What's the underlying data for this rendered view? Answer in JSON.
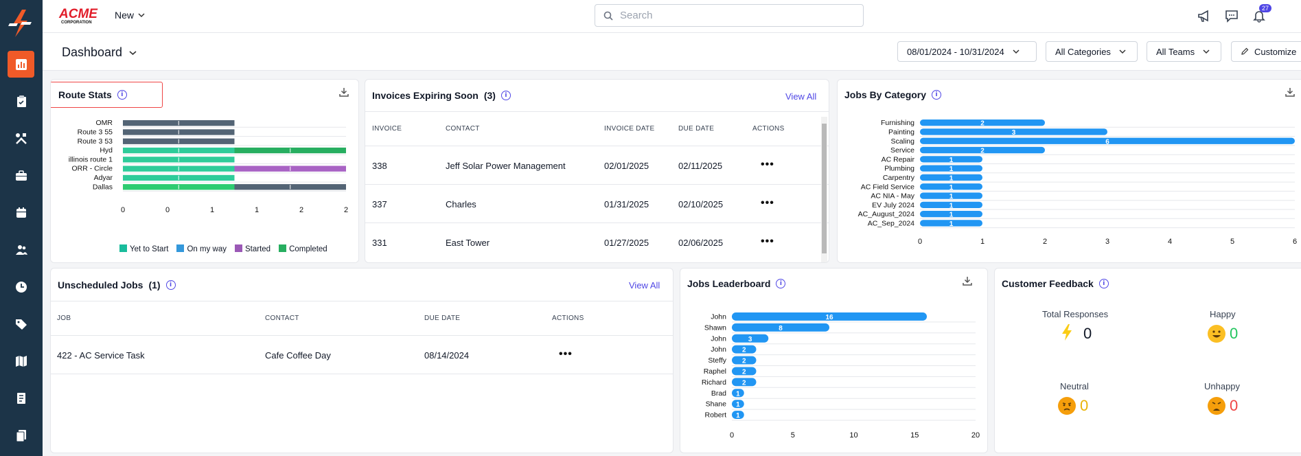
{
  "brand": {
    "line1": "ACME",
    "line2": "CORPORATION"
  },
  "topbar": {
    "new_label": "New",
    "search_placeholder": "Search",
    "notifications_count": "27"
  },
  "dashboard": {
    "title": "Dashboard",
    "date_range": "08/01/2024 - 10/31/2024",
    "categories_filter": "All Categories",
    "teams_filter": "All Teams",
    "customize_label": "Customize"
  },
  "route_stats": {
    "title": "Route Stats",
    "legend": [
      {
        "label": "Yet to Start",
        "color": "#1abc9c"
      },
      {
        "label": "On my way",
        "color": "#3498db"
      },
      {
        "label": "Started",
        "color": "#9b59b6"
      },
      {
        "label": "Completed",
        "color": "#27ae60"
      }
    ],
    "chart_data": {
      "type": "bar",
      "orientation": "horizontal",
      "stacked": true,
      "categories": [
        "OMR",
        "Route 3 55",
        "Route 3 53",
        "Hyd",
        "illinois route 1",
        "ORR - Circle",
        "Adyar",
        "Dallas"
      ],
      "x_ticks": [
        "0",
        "0",
        "1",
        "1",
        "2",
        "2"
      ],
      "xlim": [
        0,
        2
      ],
      "segments": [
        [
          {
            "value": 1,
            "color": "#536475"
          }
        ],
        [
          {
            "value": 1,
            "color": "#536475"
          }
        ],
        [
          {
            "value": 1,
            "color": "#536475"
          }
        ],
        [
          {
            "value": 1,
            "color": "#2ecc9a"
          },
          {
            "value": 1,
            "color": "#27ae60"
          }
        ],
        [
          {
            "value": 1,
            "color": "#2ecc9a"
          }
        ],
        [
          {
            "value": 1,
            "color": "#2ecc9a"
          },
          {
            "value": 1,
            "color": "#a863c4"
          }
        ],
        [
          {
            "value": 1,
            "color": "#2ecc9a"
          }
        ],
        [
          {
            "value": 1,
            "color": "#2ecc71"
          },
          {
            "value": 1,
            "color": "#536475"
          }
        ]
      ]
    }
  },
  "invoices": {
    "title": "Invoices Expiring Soon",
    "count": "(3)",
    "view_all": "View All",
    "columns": [
      "INVOICE",
      "CONTACT",
      "INVOICE DATE",
      "DUE DATE",
      "ACTIONS"
    ],
    "rows": [
      {
        "invoice": "338",
        "contact": "Jeff Solar Power Management",
        "invoice_date": "02/01/2025",
        "due_date": "02/11/2025"
      },
      {
        "invoice": "337",
        "contact": "Charles",
        "invoice_date": "01/31/2025",
        "due_date": "02/10/2025"
      },
      {
        "invoice": "331",
        "contact": "East Tower",
        "invoice_date": "01/27/2025",
        "due_date": "02/06/2025"
      }
    ],
    "actions_glyph": "•••"
  },
  "jobs_by_category": {
    "title": "Jobs By Category",
    "chart_data": {
      "type": "bar",
      "orientation": "horizontal",
      "categories": [
        "Furnishing",
        "Painting",
        "Scaling",
        "Service",
        "AC Repair",
        "Plumbing",
        "Carpentry",
        "AC Field Service",
        "AC NIA - May",
        "EV July 2024",
        "AC_August_2024",
        "AC_Sep_2024"
      ],
      "values": [
        2,
        3,
        6,
        2,
        1,
        1,
        1,
        1,
        1,
        1,
        1,
        1
      ],
      "x_ticks": [
        "0",
        "1",
        "2",
        "3",
        "4",
        "5",
        "6"
      ],
      "xlim": [
        0,
        6
      ],
      "color": "#2196f3"
    }
  },
  "unscheduled": {
    "title": "Unscheduled Jobs",
    "count": "(1)",
    "view_all": "View All",
    "columns": [
      "JOB",
      "CONTACT",
      "DUE DATE",
      "ACTIONS"
    ],
    "rows": [
      {
        "job": "422 - AC Service Task",
        "contact": "Cafe Coffee Day",
        "due_date": "08/14/2024"
      }
    ],
    "actions_glyph": "•••"
  },
  "leaderboard": {
    "title": "Jobs Leaderboard",
    "chart_data": {
      "type": "bar",
      "orientation": "horizontal",
      "categories": [
        "John",
        "Shawn",
        "John",
        "John",
        "Steffy",
        "Raphel",
        "Richard",
        "Brad",
        "Shane",
        "Robert"
      ],
      "values": [
        16,
        8,
        3,
        2,
        2,
        2,
        2,
        1,
        1,
        1
      ],
      "x_ticks": [
        "0",
        "5",
        "10",
        "15",
        "20"
      ],
      "xlim": [
        0,
        20
      ],
      "color": "#2196f3"
    }
  },
  "feedback": {
    "title": "Customer Feedback",
    "total_label": "Total Responses",
    "total_value": "0",
    "happy_label": "Happy",
    "happy_value": "0",
    "neutral_label": "Neutral",
    "neutral_value": "0",
    "unhappy_label": "Unhappy",
    "unhappy_value": "0",
    "colors": {
      "happy": "#22c55e",
      "neutral": "#eab308",
      "unhappy": "#ef4444"
    }
  },
  "sidebar": {
    "items": [
      "reports-icon",
      "clipboard-icon",
      "tools-icon",
      "briefcase-icon",
      "calendar-icon",
      "team-icon",
      "clock-icon",
      "tag-icon",
      "map-icon",
      "invoice-icon",
      "documents-icon"
    ]
  }
}
